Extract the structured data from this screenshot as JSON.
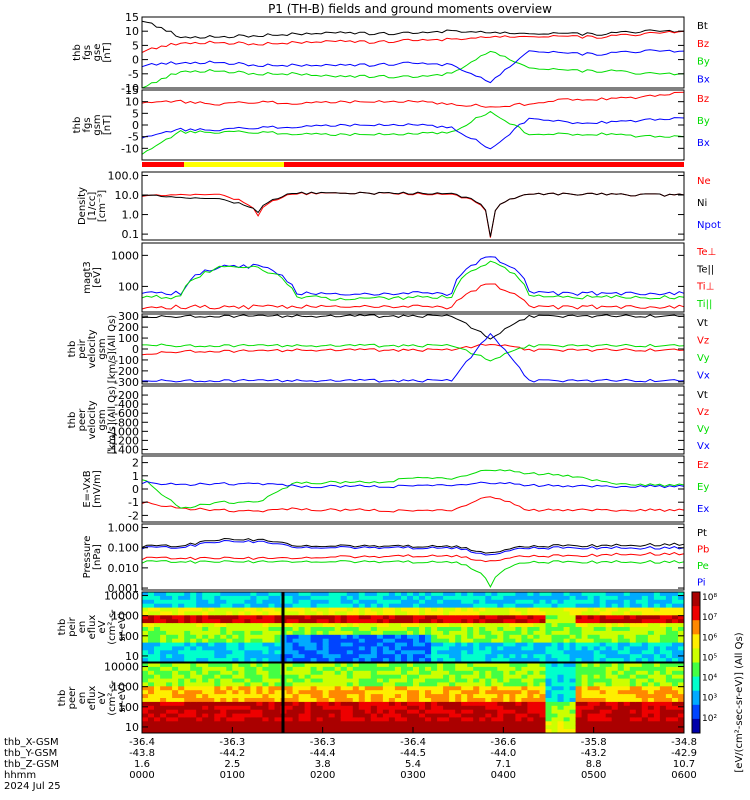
{
  "title": "P1 (TH-B) fields and ground moments overview",
  "colors": {
    "black": "#000000",
    "red": "#ff0000",
    "green": "#00dd00",
    "blue": "#0000ff",
    "yellow": "#ffff00"
  },
  "chart_data": [
    {
      "type": "line",
      "panel": "fgs-gse",
      "ylabel": [
        "thb",
        "fgs",
        "gse",
        "[nT]"
      ],
      "ylim": [
        -10,
        15
      ],
      "yticks": [
        "15",
        "10",
        "5",
        "0",
        "-5",
        "-10"
      ],
      "legend": [
        "Bt",
        "Bz",
        "By",
        "Bx"
      ],
      "legend_colors": [
        "black",
        "red",
        "green",
        "blue"
      ],
      "series": [
        {
          "name": "Bt",
          "color": "black",
          "values": [
            14,
            8,
            8,
            8.5,
            9,
            9.5,
            9,
            9.5,
            10,
            9.5,
            9,
            9,
            9,
            10,
            10
          ]
        },
        {
          "name": "Bz",
          "color": "red",
          "values": [
            3,
            6,
            6,
            5.5,
            6,
            6.5,
            6,
            7,
            7,
            8,
            8,
            8,
            8,
            9,
            10
          ]
        },
        {
          "name": "By",
          "color": "green",
          "values": [
            -10,
            -4,
            -4,
            -5,
            -5,
            -6,
            -6,
            -6,
            -5,
            3,
            -3,
            -4,
            -4,
            -5,
            -5
          ]
        },
        {
          "name": "Bx",
          "color": "blue",
          "values": [
            -2,
            -1,
            -1,
            -2,
            -2,
            -2,
            -2,
            -1,
            -2,
            -8,
            3,
            2,
            2,
            3,
            3
          ]
        }
      ]
    },
    {
      "type": "line",
      "panel": "fgs-gsm",
      "ylabel": [
        "thb",
        "fgs",
        "gsm",
        "[nT]"
      ],
      "ylim": [
        -15,
        15
      ],
      "yticks": [
        "15",
        "10",
        "5",
        "0",
        "-5",
        "-10"
      ],
      "legend": [
        "Bz",
        "By",
        "Bx"
      ],
      "legend_colors": [
        "red",
        "green",
        "blue"
      ],
      "series": [
        {
          "name": "Bz",
          "color": "red",
          "values": [
            10,
            10,
            9,
            10,
            9,
            10,
            10,
            10,
            9,
            8,
            9,
            11,
            11,
            12,
            14
          ]
        },
        {
          "name": "By",
          "color": "green",
          "values": [
            -12,
            -3,
            -3,
            -3,
            -4,
            -4,
            -4,
            -4,
            -3,
            6,
            -4,
            -4,
            -4,
            -5,
            -5
          ]
        },
        {
          "name": "Bx",
          "color": "blue",
          "values": [
            -5,
            -2,
            -2,
            -1,
            -1,
            0,
            0,
            0,
            -1,
            -10,
            3,
            1,
            1,
            2,
            3
          ]
        }
      ]
    },
    {
      "type": "line",
      "panel": "density",
      "ylabel": [
        "Density",
        "[1/cc]",
        "[cm⁻³]"
      ],
      "log": true,
      "ylim": [
        0.05,
        150
      ],
      "yticks": [
        "100.0",
        "10.0",
        "1.0",
        "0.1"
      ],
      "legend": [
        "Ne",
        "Ni",
        "Npot"
      ],
      "legend_colors": [
        "red",
        "black",
        "blue"
      ],
      "series": [
        {
          "name": "Ne",
          "color": "red",
          "values": [
            10,
            10,
            10,
            1,
            12,
            12,
            12,
            12,
            11,
            0.07,
            12,
            11,
            11,
            10,
            10
          ]
        },
        {
          "name": "Ni",
          "color": "black",
          "values": [
            11,
            7,
            6,
            1.5,
            13,
            12,
            12,
            13,
            12,
            0.08,
            12,
            11,
            11,
            10,
            10
          ]
        }
      ]
    },
    {
      "type": "line",
      "panel": "temperature",
      "ylabel": [
        "magt3",
        "[eV]"
      ],
      "log": true,
      "ylim": [
        15,
        2500
      ],
      "yticks": [
        "1000",
        "100"
      ],
      "legend": [
        "Te⊥",
        "Te||",
        "Ti⊥",
        "Ti||"
      ],
      "legend_colors": [
        "red",
        "black",
        "red",
        "green"
      ],
      "series": [
        {
          "name": "Ti⊥",
          "color": "blue",
          "values": [
            70,
            60,
            450,
            450,
            60,
            55,
            55,
            60,
            60,
            900,
            65,
            60,
            60,
            60,
            60
          ]
        },
        {
          "name": "Ti||",
          "color": "green",
          "values": [
            50,
            45,
            400,
            400,
            45,
            42,
            42,
            45,
            45,
            600,
            50,
            45,
            45,
            45,
            45
          ]
        },
        {
          "name": "Te⊥",
          "color": "red",
          "values": [
            22,
            22,
            22,
            22,
            22,
            22,
            22,
            22,
            22,
            120,
            22,
            22,
            22,
            22,
            22
          ]
        }
      ]
    },
    {
      "type": "line",
      "panel": "peir-velocity",
      "ylabel": [
        "thb",
        "peir",
        "velocity",
        "gsm",
        "[km/s](All Qs)"
      ],
      "ylim": [
        -320,
        320
      ],
      "yticks": [
        "300",
        "200",
        "100",
        "0",
        "-100",
        "-200",
        "-300"
      ],
      "legend": [
        "Vt",
        "Vz",
        "Vy",
        "Vx"
      ],
      "legend_colors": [
        "black",
        "red",
        "green",
        "blue"
      ],
      "series": [
        {
          "name": "Vt",
          "color": "black",
          "values": [
            300,
            300,
            300,
            300,
            300,
            300,
            300,
            300,
            300,
            100,
            300,
            300,
            300,
            300,
            300
          ]
        },
        {
          "name": "Vz",
          "color": "red",
          "values": [
            -40,
            -20,
            -20,
            -20,
            -10,
            -10,
            -10,
            -10,
            -10,
            50,
            -10,
            -10,
            -10,
            -10,
            -10
          ]
        },
        {
          "name": "Vy",
          "color": "green",
          "values": [
            50,
            30,
            30,
            30,
            30,
            30,
            30,
            30,
            30,
            -100,
            30,
            30,
            30,
            30,
            30
          ]
        },
        {
          "name": "Vx",
          "color": "blue",
          "values": [
            -280,
            -290,
            -290,
            -290,
            -290,
            -290,
            -290,
            -290,
            -290,
            150,
            -290,
            -290,
            -290,
            -290,
            -290
          ]
        }
      ]
    },
    {
      "type": "line",
      "panel": "peer-velocity",
      "ylabel": [
        "thb",
        "peer",
        "velocity",
        "gsm",
        "[km/s](All Qs)"
      ],
      "ylim": [
        -1500,
        0
      ],
      "yticks": [
        "-200",
        "-400",
        "-600",
        "-800",
        "-1000",
        "-1200",
        "-1400"
      ],
      "legend": [
        "Vt",
        "Vz",
        "Vy",
        "Vx"
      ],
      "legend_colors": [
        "black",
        "red",
        "green",
        "blue"
      ],
      "series": []
    },
    {
      "type": "line",
      "panel": "efield",
      "ylabel": [
        "E=-VxB",
        "[mV/m]"
      ],
      "ylim": [
        -2.5,
        2.5
      ],
      "yticks": [
        "2",
        "1",
        "0",
        "-1",
        "-2"
      ],
      "legend": [
        "Ez",
        "Ey",
        "Ex"
      ],
      "legend_colors": [
        "red",
        "green",
        "blue"
      ],
      "series": [
        {
          "name": "Ez",
          "color": "red",
          "values": [
            -1,
            -1.5,
            -1.6,
            -1.7,
            -1.5,
            -1.6,
            -1.6,
            -1.7,
            -1.6,
            -0.5,
            -1.6,
            -1.6,
            -1.6,
            -1.6,
            -1.6
          ]
        },
        {
          "name": "Ey",
          "color": "green",
          "values": [
            0.8,
            -1.5,
            -1,
            -1,
            0.5,
            0.5,
            0.5,
            0.8,
            0.8,
            1.5,
            1.2,
            1.0,
            0.5,
            0.3,
            0.3
          ]
        },
        {
          "name": "Ex",
          "color": "blue",
          "values": [
            0.5,
            0.3,
            0.4,
            0.4,
            0.2,
            0.2,
            0.2,
            0.2,
            0.3,
            0.5,
            0.3,
            0.2,
            0.2,
            0.2,
            0.2
          ]
        }
      ]
    },
    {
      "type": "line",
      "panel": "pressure",
      "ylabel": [
        "Pressure",
        "[nPa]"
      ],
      "log": true,
      "ylim": [
        0.0008,
        1.5
      ],
      "yticks": [
        "1.000",
        "0.100",
        "0.010",
        "0.001"
      ],
      "legend": [
        "Pt",
        "Pb",
        "Pe",
        "Pi"
      ],
      "legend_colors": [
        "black",
        "red",
        "green",
        "blue"
      ],
      "series": [
        {
          "name": "Pt",
          "color": "black",
          "values": [
            0.12,
            0.12,
            0.25,
            0.25,
            0.12,
            0.12,
            0.12,
            0.12,
            0.12,
            0.05,
            0.12,
            0.13,
            0.13,
            0.14,
            0.15
          ]
        },
        {
          "name": "Pb",
          "color": "red",
          "values": [
            0.03,
            0.03,
            0.03,
            0.03,
            0.03,
            0.035,
            0.035,
            0.04,
            0.04,
            0.02,
            0.04,
            0.04,
            0.045,
            0.05,
            0.05
          ]
        },
        {
          "name": "Pe",
          "color": "green",
          "values": [
            0.02,
            0.02,
            0.02,
            0.02,
            0.02,
            0.02,
            0.02,
            0.02,
            0.02,
            0.001,
            0.02,
            0.02,
            0.02,
            0.02,
            0.02
          ]
        },
        {
          "name": "Pi",
          "color": "blue",
          "values": [
            0.1,
            0.1,
            0.2,
            0.2,
            0.1,
            0.1,
            0.1,
            0.1,
            0.1,
            0.04,
            0.1,
            0.1,
            0.1,
            0.1,
            0.1
          ]
        }
      ]
    },
    {
      "type": "heatmap",
      "panel": "peir-eflux",
      "ylabel": [
        "thb",
        "peir",
        "en",
        "eflux",
        "eV",
        "(cm²-s-",
        "sr-eV)"
      ],
      "log": true,
      "ylim": [
        5,
        15000
      ],
      "yticks": [
        "10000",
        "1000",
        "100",
        "10"
      ]
    },
    {
      "type": "heatmap",
      "panel": "peer-eflux",
      "ylabel": [
        "thb",
        "peer",
        "en",
        "eflux",
        "eV",
        "(cm²-s-",
        "sr-eV)"
      ],
      "log": true,
      "ylim": [
        5,
        15000
      ],
      "yticks": [
        "10000",
        "1000",
        "100",
        "10"
      ],
      "colorbar": {
        "label": "[eV/(cm²-sec-sr-eV)] (All Qs)",
        "ticks": [
          "10⁸",
          "10⁷",
          "10⁶",
          "10⁵",
          "10⁴",
          "10³",
          "10²"
        ]
      }
    }
  ],
  "xaxis": {
    "rows": [
      {
        "label": "thb_X-GSM",
        "values": [
          "-36.4",
          "-36.3",
          "-36.3",
          "-36.4",
          "-36.6",
          "-35.8",
          "-34.8"
        ]
      },
      {
        "label": "thb_Y-GSM",
        "values": [
          "-43.8",
          "-44.2",
          "-44.4",
          "-44.5",
          "-44.0",
          "-43.2",
          "-42.9"
        ]
      },
      {
        "label": "thb_Z-GSM",
        "values": [
          "1.6",
          "2.5",
          "3.8",
          "5.4",
          "7.1",
          "8.8",
          "10.7"
        ]
      },
      {
        "label": "hhmm",
        "values": [
          "0000",
          "0100",
          "0200",
          "0300",
          "0400",
          "0500",
          "0600"
        ]
      }
    ],
    "date": "2024 Jul 25"
  }
}
